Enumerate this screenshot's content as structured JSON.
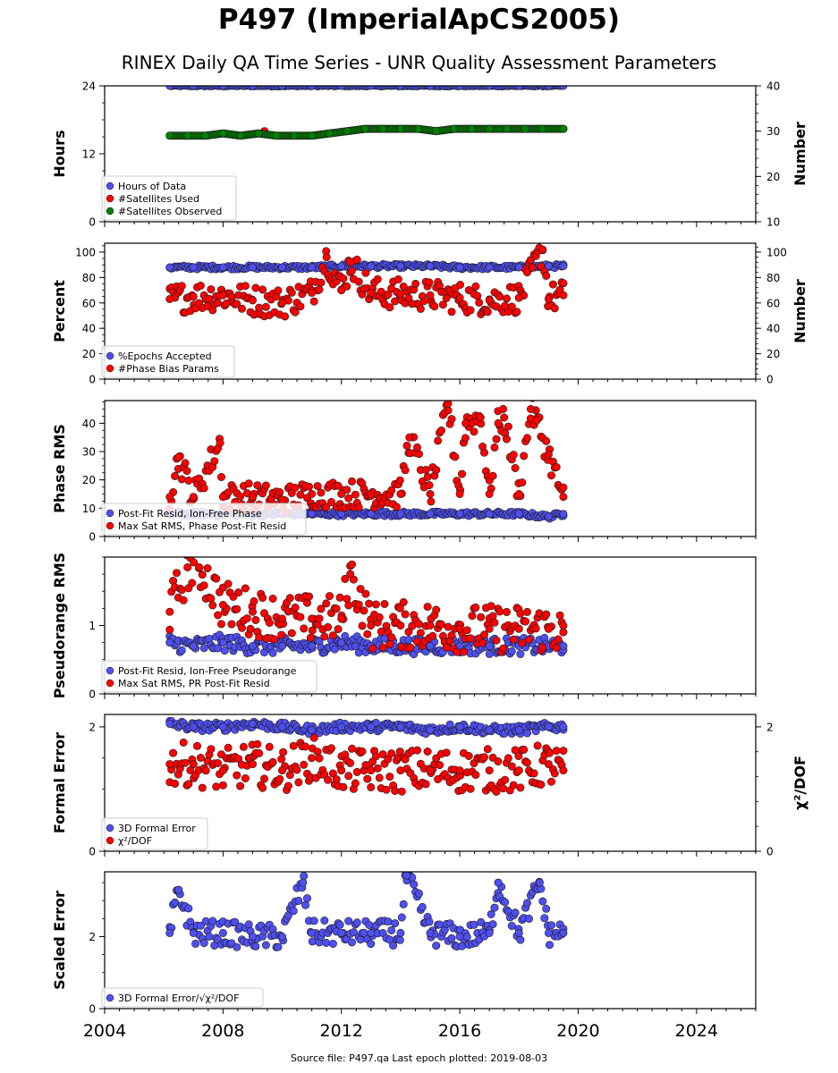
{
  "title": "P497 (ImperialApCS2005)",
  "subtitle": "RINEX Daily QA Time Series - UNR Quality Assessment Parameters",
  "footer": "Source file: P497.qa Last epoch plotted: 2019-08-03",
  "colors": {
    "blue": "#4f4ff0",
    "red": "#ff0000",
    "green": "#008000",
    "edge": "#1a1a1a"
  },
  "chart_data": [
    {
      "type": "scatter",
      "ylabel": "Hours",
      "y2label": "Number",
      "ylim": [
        0,
        24
      ],
      "yticks": [
        0,
        12,
        24
      ],
      "y2lim": [
        10,
        40
      ],
      "y2ticks": [
        10,
        20,
        30,
        40
      ],
      "xlim": [
        2004,
        2026
      ],
      "legend_position": "lower-left",
      "series": [
        {
          "name": "Hours of Data",
          "color": "blue",
          "axis": "left",
          "x": [
            2006.2,
            2007.0,
            2008.0,
            2009.0,
            2010.0,
            2011.0,
            2012.0,
            2013.0,
            2014.0,
            2015.0,
            2016.0,
            2017.0,
            2018.0,
            2019.0,
            2019.5
          ],
          "y": [
            24,
            24,
            24,
            24,
            24,
            24,
            24,
            24,
            24,
            24,
            24,
            24,
            24,
            24,
            24
          ]
        },
        {
          "name": "#Satellites Used",
          "color": "red",
          "axis": "right",
          "x": [
            2009.4
          ],
          "y": [
            30
          ]
        },
        {
          "name": "#Satellites Observed",
          "color": "green",
          "axis": "right",
          "x": [
            2006.2,
            2006.8,
            2007.4,
            2008.0,
            2008.6,
            2009.2,
            2009.8,
            2010.4,
            2011.0,
            2011.6,
            2012.2,
            2012.8,
            2013.4,
            2014.0,
            2014.6,
            2015.2,
            2015.8,
            2016.4,
            2017.0,
            2017.6,
            2018.2,
            2018.8,
            2019.5
          ],
          "y": [
            29,
            29,
            29,
            29.5,
            29,
            29.5,
            29,
            29,
            29,
            29.5,
            30,
            30.5,
            30.5,
            30.5,
            30.5,
            30,
            30.5,
            30.5,
            30.5,
            30.5,
            30.5,
            30.5,
            30.5
          ]
        }
      ]
    },
    {
      "type": "scatter",
      "ylabel": "Percent",
      "y2label": "Number",
      "ylim": [
        0,
        107
      ],
      "yticks": [
        0,
        20,
        40,
        60,
        80,
        100
      ],
      "y2ticks": [
        0,
        20,
        40,
        60,
        80,
        100
      ],
      "xlim": [
        2004,
        2026
      ],
      "legend_position": "lower-left",
      "series": [
        {
          "name": "%Epochs Accepted",
          "color": "blue",
          "axis": "left",
          "x": [
            2006.2,
            2007.0,
            2008.0,
            2009.0,
            2010.0,
            2011.0,
            2012.0,
            2013.0,
            2014.0,
            2015.0,
            2016.0,
            2017.0,
            2018.0,
            2019.0,
            2019.5
          ],
          "y": [
            88,
            88,
            88,
            88,
            88,
            88,
            89,
            89,
            89,
            89,
            88,
            88,
            88,
            89,
            89
          ]
        },
        {
          "name": "#Phase Bias Params",
          "color": "red",
          "axis": "right",
          "x": [
            2006.2,
            2007.0,
            2008.0,
            2009.0,
            2010.0,
            2011.0,
            2011.5,
            2012.0,
            2012.3,
            2013.0,
            2014.0,
            2015.0,
            2016.0,
            2017.0,
            2018.0,
            2018.8,
            2019.0,
            2019.5
          ],
          "y": [
            63,
            65,
            66,
            62,
            60,
            68,
            96,
            70,
            92,
            68,
            67,
            66,
            64,
            62,
            64,
            102,
            63,
            66
          ]
        }
      ]
    },
    {
      "type": "scatter",
      "ylabel": "Phase RMS",
      "ylim": [
        0,
        48
      ],
      "yticks": [
        0,
        10,
        20,
        30,
        40
      ],
      "xlim": [
        2004,
        2026
      ],
      "legend_position": "lower-left",
      "series": [
        {
          "name": "Post-Fit Resid, Ion-Free Phase",
          "color": "blue",
          "axis": "left",
          "x": [
            2006.2,
            2007.0,
            2008.0,
            2009.0,
            2010.0,
            2011.0,
            2012.0,
            2013.0,
            2014.0,
            2015.0,
            2016.0,
            2017.0,
            2018.0,
            2019.0,
            2019.5
          ],
          "y": [
            8,
            8,
            8,
            8,
            8,
            8,
            8,
            8,
            8,
            8,
            8,
            8,
            8,
            7,
            8
          ]
        },
        {
          "name": "Max Sat RMS, Phase Post-Fit Resid",
          "color": "red",
          "axis": "left",
          "x": [
            2006.2,
            2006.5,
            2007.0,
            2007.9,
            2008.0,
            2009.0,
            2010.0,
            2011.0,
            2012.0,
            2013.0,
            2014.0,
            2014.3,
            2015.0,
            2015.6,
            2016.0,
            2016.2,
            2016.7,
            2017.0,
            2017.3,
            2017.5,
            2018.0,
            2018.4,
            2018.6,
            2019.0,
            2019.5
          ],
          "y": [
            14,
            28,
            14,
            33,
            14,
            14,
            13,
            15,
            15,
            15,
            15,
            35,
            15,
            47,
            15,
            40,
            42,
            15,
            40,
            42,
            15,
            45,
            41,
            29,
            14
          ]
        }
      ]
    },
    {
      "type": "scatter",
      "ylabel": "Pseudorange RMS",
      "ylim": [
        0,
        2
      ],
      "yticks": [
        0,
        1
      ],
      "xlim": [
        2004,
        2026
      ],
      "legend_position": "lower-left",
      "series": [
        {
          "name": "Post-Fit Resid, Ion-Free Pseudorange",
          "color": "blue",
          "axis": "left",
          "x": [
            2006.2,
            2007.0,
            2008.0,
            2009.0,
            2010.0,
            2011.0,
            2012.0,
            2013.0,
            2014.0,
            2015.0,
            2016.0,
            2017.0,
            2018.0,
            2019.0,
            2019.5
          ],
          "y": [
            0.75,
            0.7,
            0.75,
            0.7,
            0.7,
            0.7,
            0.75,
            0.7,
            0.7,
            0.7,
            0.7,
            0.7,
            0.7,
            0.7,
            0.7
          ]
        },
        {
          "name": "Max Sat RMS, PR Post-Fit Resid",
          "color": "red",
          "axis": "left",
          "x": [
            2006.2,
            2006.8,
            2007.2,
            2008.0,
            2009.0,
            2010.0,
            2011.0,
            2012.0,
            2012.3,
            2013.0,
            2014.0,
            2015.0,
            2016.0,
            2017.0,
            2018.0,
            2019.0,
            2019.5
          ],
          "y": [
            1.2,
            1.85,
            1.85,
            1.3,
            1.2,
            1.1,
            1.1,
            1.1,
            1.75,
            1.0,
            1.0,
            1.0,
            0.95,
            0.95,
            0.95,
            0.95,
            0.9
          ]
        }
      ]
    },
    {
      "type": "scatter",
      "ylabel": "Formal Error",
      "y2label": "χ²/DOF",
      "ylim": [
        0,
        2.2
      ],
      "yticks": [
        0,
        2
      ],
      "y2ticks": [
        0,
        2
      ],
      "xlim": [
        2004,
        2026
      ],
      "legend_position": "lower-left",
      "series": [
        {
          "name": "3D Formal Error",
          "color": "blue",
          "axis": "left",
          "x": [
            2006.2,
            2007.0,
            2008.0,
            2009.0,
            2010.0,
            2011.0,
            2012.0,
            2013.0,
            2014.0,
            2015.0,
            2016.0,
            2017.0,
            2018.0,
            2019.0,
            2019.5
          ],
          "y": [
            2.05,
            2.0,
            2.0,
            2.05,
            2.0,
            1.95,
            2.0,
            2.0,
            2.0,
            1.95,
            2.0,
            1.95,
            1.95,
            2.0,
            2.0
          ]
        },
        {
          "name": "χ²/DOF",
          "color": "red",
          "axis": "right",
          "x": [
            2006.2,
            2007.0,
            2008.0,
            2009.0,
            2010.0,
            2011.0,
            2012.0,
            2013.0,
            2014.0,
            2015.0,
            2016.0,
            2017.0,
            2018.0,
            2019.0,
            2019.5
          ],
          "y": [
            1.4,
            1.4,
            1.3,
            1.4,
            1.3,
            1.5,
            1.3,
            1.3,
            1.3,
            1.3,
            1.3,
            1.3,
            1.3,
            1.4,
            1.3
          ]
        }
      ]
    },
    {
      "type": "scatter",
      "ylabel": "Scaled Error",
      "ylim": [
        0,
        3.8
      ],
      "yticks": [
        0,
        2
      ],
      "xlim": [
        2004,
        2026
      ],
      "xticks": [
        2004,
        2008,
        2012,
        2016,
        2020,
        2024
      ],
      "legend_position": "lower-left",
      "series": [
        {
          "name": "3D Formal Error/√χ²/DOF",
          "color": "blue",
          "axis": "left",
          "x": [
            2006.2,
            2006.5,
            2007.0,
            2008.0,
            2009.0,
            2010.0,
            2010.7,
            2011.0,
            2012.0,
            2013.0,
            2014.0,
            2014.2,
            2015.0,
            2016.0,
            2017.0,
            2017.3,
            2018.0,
            2018.7,
            2019.0,
            2019.5
          ],
          "y": [
            2.1,
            3.3,
            2.1,
            2.1,
            2.0,
            2.0,
            3.5,
            2.1,
            2.1,
            2.1,
            2.1,
            3.7,
            2.1,
            2.0,
            2.1,
            3.5,
            2.1,
            3.5,
            2.1,
            2.1
          ]
        }
      ]
    }
  ]
}
